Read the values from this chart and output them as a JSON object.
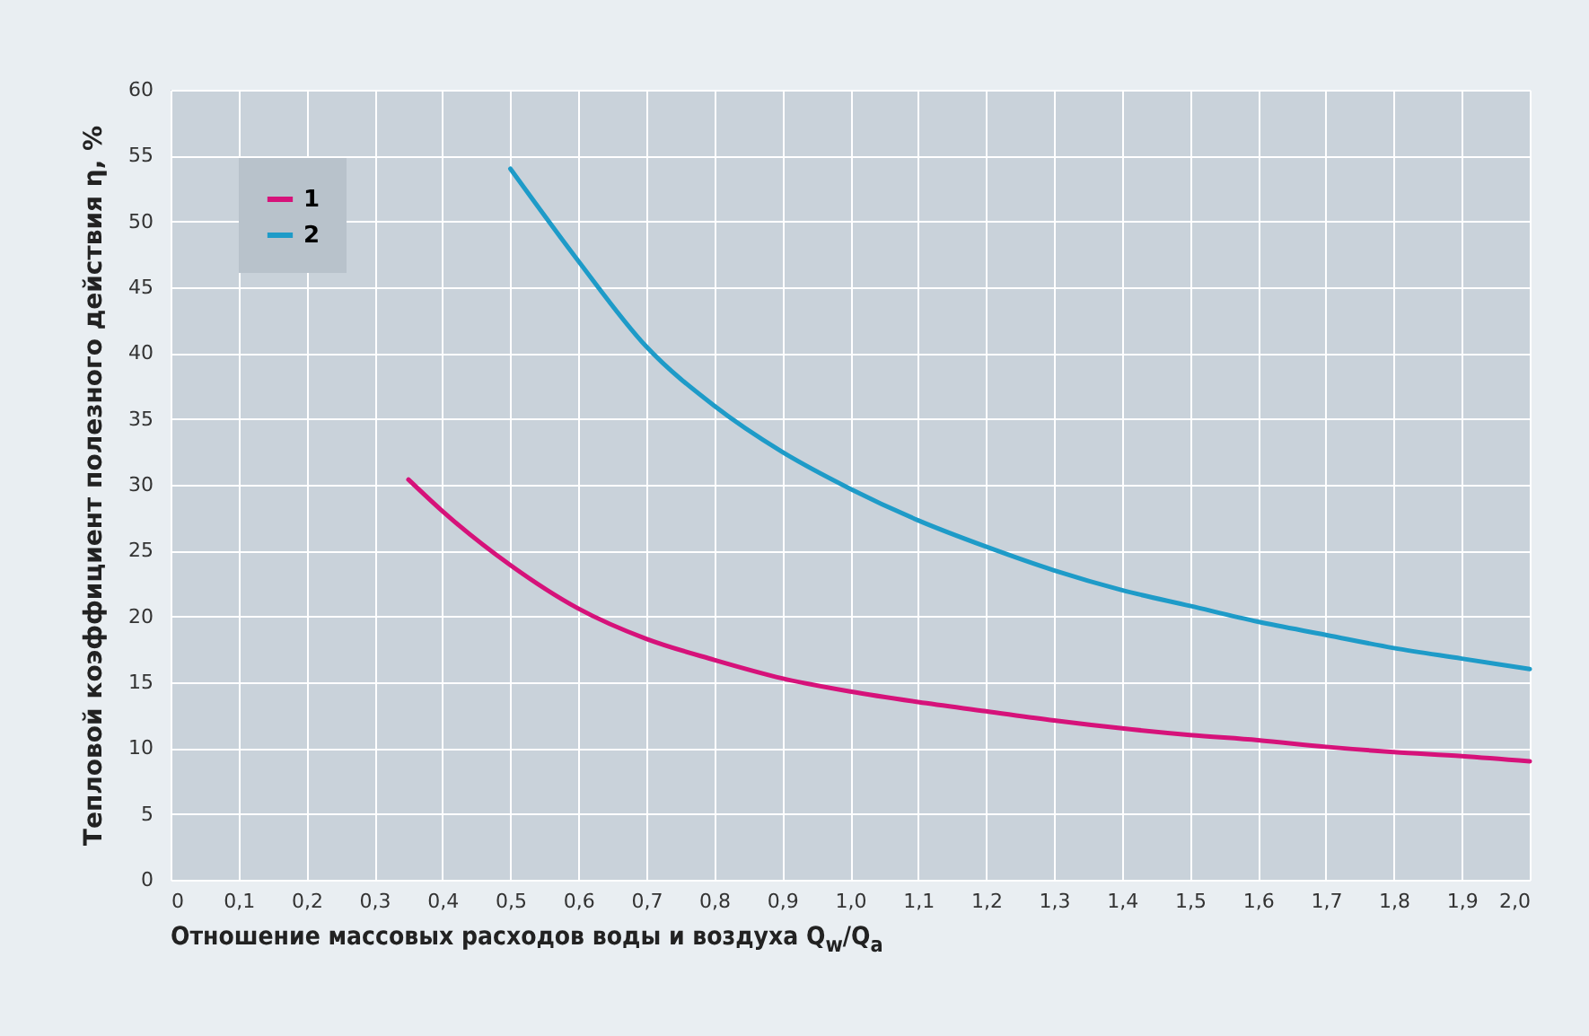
{
  "chart_data": {
    "type": "line",
    "xlabel": "Отношение массовых расходов воды и воздуха Q$_{w}$/Q$_{a}$",
    "ylabel": "Тепловой коэффициент полезного действия η, %",
    "xlim": [
      0,
      2.0
    ],
    "xticks": [
      0,
      {
        "value": 0.1,
        "label": "0,1"
      },
      {
        "value": 0.2,
        "label": "0,2"
      },
      {
        "value": 0.3,
        "label": "0,3"
      },
      {
        "value": 0.4,
        "label": "0,4"
      },
      {
        "value": 0.5,
        "label": "0,5"
      },
      {
        "value": 0.6,
        "label": "0,6"
      },
      {
        "value": 0.7,
        "label": "0,7"
      },
      {
        "value": 0.8,
        "label": "0,8"
      },
      {
        "value": 0.9,
        "label": "0,9"
      },
      {
        "value": 1.0,
        "label": "1,0"
      },
      {
        "value": 1.1,
        "label": "1,1"
      },
      {
        "value": 1.2,
        "label": "1,2"
      },
      {
        "value": 1.3,
        "label": "1,3"
      },
      {
        "value": 1.4,
        "label": "1,4"
      },
      {
        "value": 1.5,
        "label": "1,5"
      },
      {
        "value": 1.6,
        "label": "1,6"
      },
      {
        "value": 1.7,
        "label": "1,7"
      },
      {
        "value": 1.8,
        "label": "1,8"
      },
      {
        "value": 1.9,
        "label": "1,9"
      },
      {
        "value": 2.0,
        "label": "2,0"
      }
    ],
    "ylim": [
      0,
      60
    ],
    "yticks": [
      0,
      5,
      10,
      15,
      20,
      25,
      30,
      35,
      40,
      45,
      50,
      55,
      60
    ],
    "grid": true,
    "legend": "top left",
    "series": [
      {
        "name": "1",
        "color": "#d6127a",
        "x": [
          0.35,
          0.4,
          0.5,
          0.6,
          0.7,
          0.8,
          0.9,
          1.0,
          1.1,
          1.2,
          1.3,
          1.4,
          1.5,
          1.6,
          1.7,
          1.8,
          1.9,
          2.0
        ],
        "values": [
          30.4,
          28.0,
          23.9,
          20.6,
          18.3,
          16.7,
          15.3,
          14.3,
          13.5,
          12.8,
          12.1,
          11.5,
          11.0,
          10.6,
          10.1,
          9.7,
          9.4,
          9.0
        ]
      },
      {
        "name": "2",
        "color": "#1e9bc8",
        "x": [
          0.5,
          0.6,
          0.7,
          0.8,
          0.9,
          1.0,
          1.1,
          1.2,
          1.3,
          1.4,
          1.5,
          1.6,
          1.7,
          1.8,
          1.9,
          2.0
        ],
        "values": [
          54.0,
          47.0,
          40.5,
          36.0,
          32.5,
          29.7,
          27.3,
          25.3,
          23.5,
          22.0,
          20.8,
          19.6,
          18.6,
          17.6,
          16.8,
          16.0
        ]
      }
    ]
  }
}
